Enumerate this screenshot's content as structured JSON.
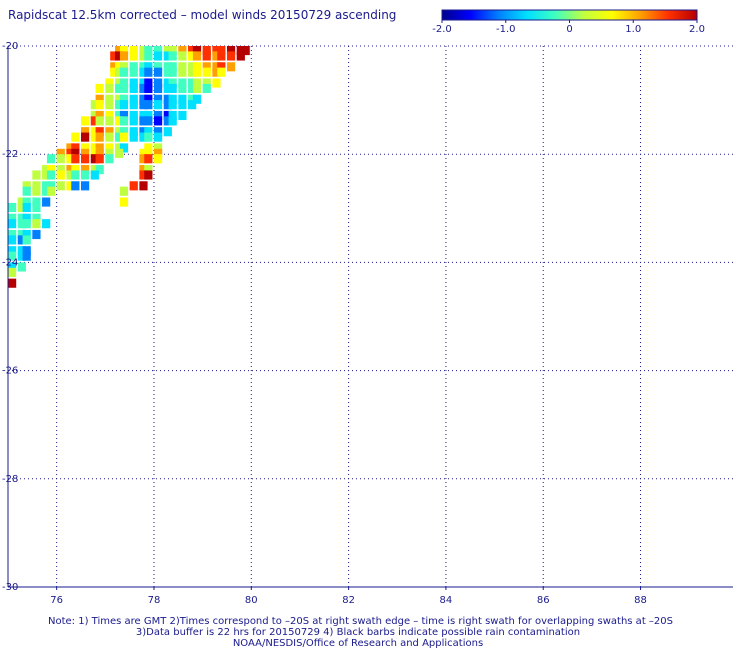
{
  "title": "Rapidscat 12.5km corrected – model winds 20150729 ascending",
  "colorbar": {
    "ticks": [
      {
        "value": -2.0,
        "label": "-2.0"
      },
      {
        "value": -1.0,
        "label": "-1.0"
      },
      {
        "value": 0,
        "label": "0"
      },
      {
        "value": 1.0,
        "label": "1.0"
      },
      {
        "value": 2.0,
        "label": "2.0"
      }
    ],
    "range": [
      -2.0,
      2.0
    ],
    "colors": [
      "#00008c",
      "#0000ff",
      "#0080ff",
      "#00e0ff",
      "#40ffc0",
      "#c0ff40",
      "#ffff00",
      "#ffa000",
      "#ff3000",
      "#b40000"
    ]
  },
  "notes": {
    "line1": "Note: 1) Times are GMT 2)Times correspond to –20S at right swath edge – time is right swath for overlapping swaths at –20S",
    "line2": "3)Data buffer is 22 hrs for 20150729 4) Black barbs indicate possible rain contamination",
    "line3": "NOAA/NESDIS/Office of Research and Applications"
  },
  "chart_data": {
    "type": "heatmap",
    "xlim": [
      75.0,
      89.9
    ],
    "ylim": [
      -30.0,
      -20.0
    ],
    "x_ticks": [
      {
        "value": 76,
        "label": "76"
      },
      {
        "value": 78,
        "label": "78"
      },
      {
        "value": 80,
        "label": "80"
      },
      {
        "value": 82,
        "label": "82"
      },
      {
        "value": 84,
        "label": "84"
      },
      {
        "value": 86,
        "label": "86"
      },
      {
        "value": 88,
        "label": "88"
      }
    ],
    "y_ticks": [
      {
        "value": -20,
        "label": "-20"
      },
      {
        "value": -22,
        "label": "-22"
      },
      {
        "value": -24,
        "label": "-24"
      },
      {
        "value": -26,
        "label": "-26"
      },
      {
        "value": -28,
        "label": "-28"
      },
      {
        "value": -30,
        "label": "-30"
      }
    ],
    "grid": true,
    "cell_size_deg": [
      0.125,
      0.125
    ],
    "cells": [
      [
        77.2,
        -20.0,
        1.0
      ],
      [
        77.3,
        -20.0,
        0.6
      ],
      [
        77.5,
        -20.0,
        0.4
      ],
      [
        77.7,
        -20.0,
        0.2
      ],
      [
        77.8,
        -20.0,
        -0.4
      ],
      [
        78.0,
        -20.0,
        -0.2
      ],
      [
        78.2,
        -20.0,
        0.0
      ],
      [
        78.3,
        -20.0,
        0.3
      ],
      [
        78.5,
        -20.0,
        0.8
      ],
      [
        78.7,
        -20.0,
        1.3
      ],
      [
        78.8,
        -20.0,
        1.6
      ],
      [
        79.0,
        -20.0,
        1.2
      ],
      [
        79.2,
        -20.0,
        1.5
      ],
      [
        79.3,
        -20.0,
        1.4
      ],
      [
        79.5,
        -20.0,
        1.8
      ],
      [
        79.7,
        -20.0,
        1.9
      ],
      [
        79.8,
        -20.0,
        1.6
      ],
      [
        77.1,
        -20.1,
        1.4
      ],
      [
        77.2,
        -20.1,
        1.6
      ],
      [
        77.3,
        -20.1,
        1.1
      ],
      [
        77.5,
        -20.1,
        0.5
      ],
      [
        77.7,
        -20.1,
        0.1
      ],
      [
        77.8,
        -20.1,
        -0.3
      ],
      [
        78.0,
        -20.1,
        -0.6
      ],
      [
        78.2,
        -20.1,
        -0.5
      ],
      [
        78.3,
        -20.1,
        -0.2
      ],
      [
        78.5,
        -20.1,
        0.1
      ],
      [
        78.7,
        -20.1,
        0.6
      ],
      [
        78.8,
        -20.1,
        1.1
      ],
      [
        79.0,
        -20.1,
        1.4
      ],
      [
        79.2,
        -20.1,
        1.1
      ],
      [
        79.3,
        -20.1,
        1.2
      ],
      [
        79.5,
        -20.1,
        1.5
      ],
      [
        79.7,
        -20.1,
        1.7
      ],
      [
        77.1,
        -20.3,
        0.9
      ],
      [
        77.2,
        -20.3,
        0.4
      ],
      [
        77.3,
        -20.3,
        0.1
      ],
      [
        77.5,
        -20.3,
        -0.2
      ],
      [
        77.7,
        -20.3,
        -0.4
      ],
      [
        77.8,
        -20.3,
        -0.8
      ],
      [
        78.0,
        -20.3,
        -0.4
      ],
      [
        78.2,
        -20.3,
        -0.3
      ],
      [
        78.3,
        -20.3,
        -0.1
      ],
      [
        78.5,
        -20.3,
        0.0
      ],
      [
        78.7,
        -20.3,
        0.3
      ],
      [
        78.8,
        -20.3,
        0.7
      ],
      [
        79.0,
        -20.3,
        0.9
      ],
      [
        79.2,
        -20.3,
        1.0
      ],
      [
        79.3,
        -20.3,
        1.2
      ],
      [
        79.5,
        -20.3,
        0.9
      ],
      [
        77.1,
        -20.4,
        0.5
      ],
      [
        77.2,
        -20.4,
        0.3
      ],
      [
        77.3,
        -20.4,
        -0.1
      ],
      [
        77.5,
        -20.4,
        -0.3
      ],
      [
        77.7,
        -20.4,
        -0.6
      ],
      [
        77.8,
        -20.4,
        -1.1
      ],
      [
        78.0,
        -20.4,
        -0.9
      ],
      [
        78.2,
        -20.4,
        -0.3
      ],
      [
        78.3,
        -20.4,
        -0.2
      ],
      [
        78.5,
        -20.4,
        0.1
      ],
      [
        78.7,
        -20.4,
        0.0
      ],
      [
        78.8,
        -20.4,
        0.4
      ],
      [
        79.0,
        -20.4,
        0.6
      ],
      [
        79.2,
        -20.4,
        0.8
      ],
      [
        79.3,
        -20.4,
        0.4
      ],
      [
        77.0,
        -20.6,
        0.6
      ],
      [
        77.2,
        -20.6,
        0.2
      ],
      [
        77.3,
        -20.6,
        -0.2
      ],
      [
        77.5,
        -20.6,
        -0.5
      ],
      [
        77.7,
        -20.6,
        -0.8
      ],
      [
        77.8,
        -20.6,
        -1.3
      ],
      [
        78.0,
        -20.6,
        -1.0
      ],
      [
        78.2,
        -20.6,
        -0.6
      ],
      [
        78.3,
        -20.6,
        -0.4
      ],
      [
        78.5,
        -20.6,
        -0.3
      ],
      [
        78.7,
        -20.6,
        -0.1
      ],
      [
        78.8,
        -20.6,
        0.3
      ],
      [
        79.0,
        -20.6,
        0.2
      ],
      [
        79.2,
        -20.6,
        0.5
      ],
      [
        76.8,
        -20.7,
        0.4
      ],
      [
        77.0,
        -20.7,
        0.1
      ],
      [
        77.2,
        -20.7,
        -0.3
      ],
      [
        77.3,
        -20.7,
        -0.4
      ],
      [
        77.5,
        -20.7,
        -0.7
      ],
      [
        77.7,
        -20.7,
        -1.0
      ],
      [
        77.8,
        -20.7,
        -1.4
      ],
      [
        78.0,
        -20.7,
        -1.1
      ],
      [
        78.2,
        -20.7,
        -0.7
      ],
      [
        78.3,
        -20.7,
        -0.5
      ],
      [
        78.5,
        -20.7,
        -0.4
      ],
      [
        78.7,
        -20.7,
        -0.2
      ],
      [
        78.8,
        -20.7,
        0.0
      ],
      [
        79.0,
        -20.7,
        -0.3
      ],
      [
        76.8,
        -20.9,
        0.8
      ],
      [
        77.0,
        -20.9,
        0.3
      ],
      [
        77.2,
        -20.9,
        0.0
      ],
      [
        77.3,
        -20.9,
        -0.3
      ],
      [
        77.5,
        -20.9,
        -0.6
      ],
      [
        77.7,
        -20.9,
        -0.9
      ],
      [
        77.8,
        -20.9,
        -1.3
      ],
      [
        78.0,
        -20.9,
        -1.2
      ],
      [
        78.2,
        -20.9,
        -0.9
      ],
      [
        78.3,
        -20.9,
        -0.6
      ],
      [
        78.5,
        -20.9,
        -0.5
      ],
      [
        78.7,
        -20.9,
        -0.3
      ],
      [
        78.8,
        -20.9,
        -0.5
      ],
      [
        76.7,
        -21.0,
        0.2
      ],
      [
        76.8,
        -21.0,
        0.5
      ],
      [
        77.0,
        -21.0,
        0.2
      ],
      [
        77.2,
        -21.0,
        -0.4
      ],
      [
        77.3,
        -21.0,
        -0.7
      ],
      [
        77.5,
        -21.0,
        -0.8
      ],
      [
        77.7,
        -21.0,
        -1.2
      ],
      [
        77.8,
        -21.0,
        -1.0
      ],
      [
        78.0,
        -21.0,
        -0.8
      ],
      [
        78.2,
        -21.0,
        -1.1
      ],
      [
        78.3,
        -21.0,
        -0.7
      ],
      [
        78.5,
        -21.0,
        -0.6
      ],
      [
        78.7,
        -21.0,
        -0.5
      ],
      [
        76.7,
        -21.2,
        0.1
      ],
      [
        76.8,
        -21.2,
        0.8
      ],
      [
        77.0,
        -21.2,
        0.4
      ],
      [
        77.2,
        -21.2,
        -0.2
      ],
      [
        77.3,
        -21.2,
        -0.9
      ],
      [
        77.5,
        -21.2,
        -0.6
      ],
      [
        77.7,
        -21.2,
        -0.8
      ],
      [
        77.8,
        -21.2,
        -0.7
      ],
      [
        78.0,
        -21.2,
        -1.0
      ],
      [
        78.2,
        -21.2,
        -1.3
      ],
      [
        78.3,
        -21.2,
        -0.8
      ],
      [
        78.5,
        -21.2,
        -0.6
      ],
      [
        76.5,
        -21.3,
        0.6
      ],
      [
        76.7,
        -21.3,
        1.2
      ],
      [
        76.8,
        -21.3,
        0.3
      ],
      [
        77.0,
        -21.3,
        0.0
      ],
      [
        77.2,
        -21.3,
        0.6
      ],
      [
        77.3,
        -21.3,
        -0.3
      ],
      [
        77.5,
        -21.3,
        -0.5
      ],
      [
        77.7,
        -21.3,
        -1.0
      ],
      [
        77.8,
        -21.3,
        -0.9
      ],
      [
        78.0,
        -21.3,
        -1.4
      ],
      [
        78.2,
        -21.3,
        -1.0
      ],
      [
        78.3,
        -21.3,
        -0.5
      ],
      [
        76.5,
        -21.5,
        1.0
      ],
      [
        76.7,
        -21.5,
        0.4
      ],
      [
        76.8,
        -21.5,
        1.5
      ],
      [
        77.0,
        -21.5,
        0.8
      ],
      [
        77.2,
        -21.5,
        0.1
      ],
      [
        77.3,
        -21.5,
        -0.4
      ],
      [
        77.5,
        -21.5,
        -0.8
      ],
      [
        77.7,
        -21.5,
        -1.1
      ],
      [
        77.8,
        -21.5,
        -0.6
      ],
      [
        78.0,
        -21.5,
        -0.9
      ],
      [
        78.2,
        -21.5,
        -0.7
      ],
      [
        76.3,
        -21.6,
        0.7
      ],
      [
        76.5,
        -21.6,
        1.6
      ],
      [
        76.7,
        -21.6,
        0.5
      ],
      [
        76.8,
        -21.6,
        0.9
      ],
      [
        77.0,
        -21.6,
        0.2
      ],
      [
        77.2,
        -21.6,
        -0.2
      ],
      [
        77.3,
        -21.6,
        0.4
      ],
      [
        77.5,
        -21.6,
        -0.6
      ],
      [
        77.7,
        -21.6,
        -0.7
      ],
      [
        77.8,
        -21.6,
        -0.3
      ],
      [
        78.0,
        -21.6,
        -0.5
      ],
      [
        76.2,
        -21.8,
        0.9
      ],
      [
        76.3,
        -21.8,
        1.4
      ],
      [
        76.5,
        -21.8,
        0.7
      ],
      [
        76.7,
        -21.8,
        0.6
      ],
      [
        76.8,
        -21.8,
        1.1
      ],
      [
        77.0,
        -21.8,
        0.4
      ],
      [
        77.2,
        -21.8,
        0.0
      ],
      [
        77.3,
        -21.8,
        -0.5
      ],
      [
        77.8,
        -21.8,
        0.5
      ],
      [
        78.0,
        -21.8,
        0.2
      ],
      [
        76.0,
        -21.9,
        0.8
      ],
      [
        76.2,
        -21.9,
        1.2
      ],
      [
        76.3,
        -21.9,
        1.6
      ],
      [
        76.5,
        -21.9,
        1.0
      ],
      [
        76.7,
        -21.9,
        0.5
      ],
      [
        76.8,
        -21.9,
        0.8
      ],
      [
        77.0,
        -21.9,
        0.3
      ],
      [
        77.2,
        -21.9,
        0.0
      ],
      [
        77.7,
        -21.9,
        0.4
      ],
      [
        77.8,
        -21.9,
        0.7
      ],
      [
        78.0,
        -21.9,
        0.9
      ],
      [
        75.8,
        -22.0,
        -0.2
      ],
      [
        76.0,
        -22.0,
        0.3
      ],
      [
        76.2,
        -22.0,
        0.6
      ],
      [
        76.3,
        -22.0,
        1.3
      ],
      [
        76.5,
        -22.0,
        1.5
      ],
      [
        76.7,
        -22.0,
        1.7
      ],
      [
        76.8,
        -22.0,
        1.2
      ],
      [
        77.0,
        -22.0,
        -0.1
      ],
      [
        77.7,
        -22.0,
        1.0
      ],
      [
        77.8,
        -22.0,
        1.4
      ],
      [
        78.0,
        -22.0,
        0.6
      ],
      [
        75.7,
        -22.2,
        0.0
      ],
      [
        75.8,
        -22.2,
        0.4
      ],
      [
        76.0,
        -22.2,
        0.1
      ],
      [
        76.2,
        -22.2,
        0.8
      ],
      [
        76.3,
        -22.2,
        0.5
      ],
      [
        76.5,
        -22.2,
        1.0
      ],
      [
        76.7,
        -22.2,
        0.3
      ],
      [
        76.8,
        -22.2,
        -0.1
      ],
      [
        77.7,
        -22.2,
        0.8
      ],
      [
        77.8,
        -22.2,
        0.3
      ],
      [
        75.5,
        -22.3,
        0.3
      ],
      [
        75.7,
        -22.3,
        0.2
      ],
      [
        75.8,
        -22.3,
        -0.1
      ],
      [
        76.0,
        -22.3,
        0.5
      ],
      [
        76.2,
        -22.3,
        0.3
      ],
      [
        76.3,
        -22.3,
        -0.4
      ],
      [
        76.5,
        -22.3,
        -0.3
      ],
      [
        76.7,
        -22.3,
        -0.6
      ],
      [
        77.7,
        -22.3,
        1.2
      ],
      [
        77.8,
        -22.3,
        1.7
      ],
      [
        75.3,
        -22.5,
        0.1
      ],
      [
        75.5,
        -22.5,
        0.0
      ],
      [
        75.7,
        -22.5,
        -0.3
      ],
      [
        75.8,
        -22.5,
        -0.1
      ],
      [
        76.0,
        -22.5,
        0.2
      ],
      [
        76.2,
        -22.5,
        0.5
      ],
      [
        76.3,
        -22.5,
        -1.0
      ],
      [
        76.5,
        -22.5,
        -1.2
      ],
      [
        77.5,
        -22.5,
        1.4
      ],
      [
        77.7,
        -22.5,
        1.8
      ],
      [
        75.3,
        -22.6,
        -0.1
      ],
      [
        75.5,
        -22.6,
        0.2
      ],
      [
        75.7,
        -22.6,
        -0.4
      ],
      [
        75.8,
        -22.6,
        0.1
      ],
      [
        77.3,
        -22.6,
        0.2
      ],
      [
        75.2,
        -22.8,
        0.0
      ],
      [
        75.3,
        -22.8,
        -0.3
      ],
      [
        75.5,
        -22.8,
        -0.1
      ],
      [
        75.7,
        -22.8,
        -0.9
      ],
      [
        77.3,
        -22.8,
        0.4
      ],
      [
        75.0,
        -22.9,
        -0.2
      ],
      [
        75.2,
        -22.9,
        0.1
      ],
      [
        75.3,
        -22.9,
        -0.5
      ],
      [
        75.5,
        -22.9,
        -0.3
      ],
      [
        75.0,
        -23.1,
        -0.3
      ],
      [
        75.2,
        -23.1,
        -0.1
      ],
      [
        75.3,
        -23.1,
        -0.6
      ],
      [
        75.5,
        -23.1,
        -0.2
      ],
      [
        75.0,
        -23.2,
        -0.5
      ],
      [
        75.2,
        -23.2,
        -0.3
      ],
      [
        75.3,
        -23.2,
        -0.2
      ],
      [
        75.5,
        -23.2,
        0.0
      ],
      [
        75.7,
        -23.2,
        -0.8
      ],
      [
        75.0,
        -23.4,
        -0.4
      ],
      [
        75.2,
        -23.4,
        -0.2
      ],
      [
        75.3,
        -23.4,
        -0.7
      ],
      [
        75.5,
        -23.4,
        -1.0
      ],
      [
        75.0,
        -23.5,
        -0.6
      ],
      [
        75.2,
        -23.5,
        -0.9
      ],
      [
        75.3,
        -23.5,
        -0.3
      ],
      [
        75.0,
        -23.7,
        -0.5
      ],
      [
        75.2,
        -23.7,
        -0.8
      ],
      [
        75.3,
        -23.7,
        -1.1
      ],
      [
        75.0,
        -23.8,
        -0.2
      ],
      [
        75.2,
        -23.8,
        -0.6
      ],
      [
        75.3,
        -23.8,
        -0.9
      ],
      [
        75.0,
        -24.0,
        -0.7
      ],
      [
        75.2,
        -24.0,
        -0.4
      ],
      [
        75.0,
        -24.1,
        0.1
      ],
      [
        75.0,
        -24.3,
        1.8
      ]
    ]
  }
}
